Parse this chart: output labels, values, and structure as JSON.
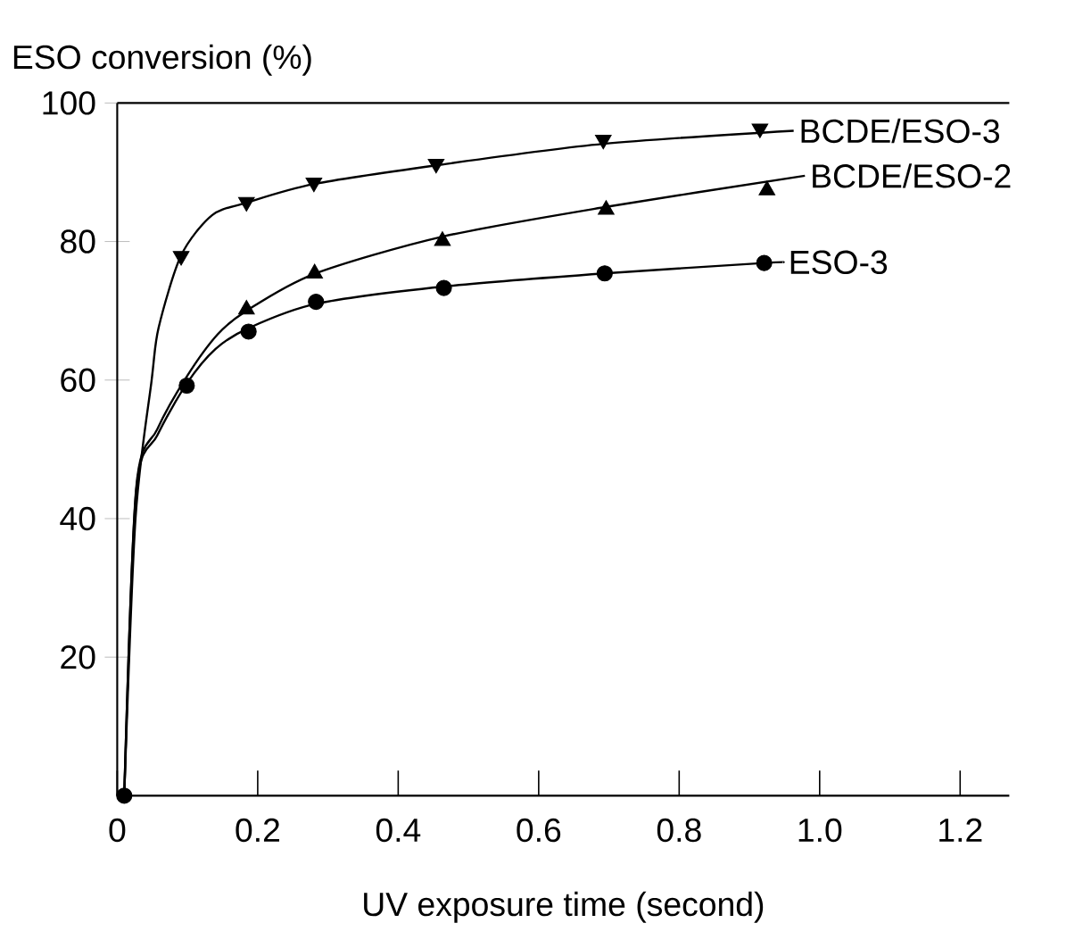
{
  "chart_data": {
    "type": "line",
    "xlabel": "UV exposure time (second)",
    "ylabel": "ESO conversion (%)",
    "xlim": [
      0,
      1.27
    ],
    "ylim": [
      0,
      100
    ],
    "xticks": [
      0,
      {
        "value": 0.2,
        "label": "0.2"
      },
      {
        "value": 0.4,
        "label": "0.4"
      },
      {
        "value": 0.6,
        "label": "0.6"
      },
      {
        "value": 0.8,
        "label": "0.8"
      },
      {
        "value": 1.0,
        "label": "1.0"
      },
      {
        "value": 1.2,
        "label": "1.2"
      }
    ],
    "yticks": [
      20,
      40,
      60,
      80,
      100
    ],
    "grid": false,
    "series": [
      {
        "name": "BCDE/ESO-3",
        "color": "#000000",
        "marker": "none",
        "x": [
          0.01,
          0.026,
          0.049,
          0.059,
          0.091,
          0.135,
          0.184,
          0.28,
          0.454,
          0.692,
          0.963
        ],
        "values": [
          0,
          40,
          60,
          67.6,
          78,
          83.8,
          85.6,
          88.3,
          91,
          94.1,
          96
        ]
      },
      {
        "name": "BCDE/ESO-2",
        "color": "#000000",
        "marker": "none",
        "x": [
          0.01,
          0.027,
          0.057,
          0.099,
          0.143,
          0.184,
          0.28,
          0.463,
          0.696,
          0.979
        ],
        "values": [
          0,
          44.4,
          52.9,
          60.5,
          66.6,
          70,
          75.3,
          80.7,
          85,
          89.5
        ]
      },
      {
        "name": "ESO-3",
        "color": "#000000",
        "marker": "none",
        "x": [
          0.01,
          0.027,
          0.057,
          0.099,
          0.14,
          0.187,
          0.283,
          0.465,
          0.694,
          0.921,
          0.948
        ],
        "values": [
          0,
          44,
          52,
          59.5,
          64.5,
          67.5,
          71,
          73.5,
          75.4,
          76.9,
          77
        ]
      },
      {
        "type": "scatter",
        "color": "#000000",
        "marker": "triangle-down",
        "x": [
          0.091,
          0.184,
          0.28,
          0.454,
          0.692,
          0.915
        ],
        "values": [
          77.9,
          85.7,
          88.5,
          91.2,
          94.7,
          96.3
        ]
      },
      {
        "type": "scatter",
        "color": "#000000",
        "marker": "triangle",
        "x": [
          0.184,
          0.281,
          0.463,
          0.696,
          0.925
        ],
        "values": [
          70.2,
          75.4,
          80.1,
          84.6,
          87.4
        ]
      },
      {
        "type": "scatter",
        "color": "#000000",
        "marker": "circle",
        "x": [
          0.01,
          0.099,
          0.187,
          0.283,
          0.465,
          0.694,
          0.921
        ],
        "values": [
          0,
          59.2,
          67,
          71.3,
          73.3,
          75.4,
          76.9
        ]
      }
    ]
  }
}
